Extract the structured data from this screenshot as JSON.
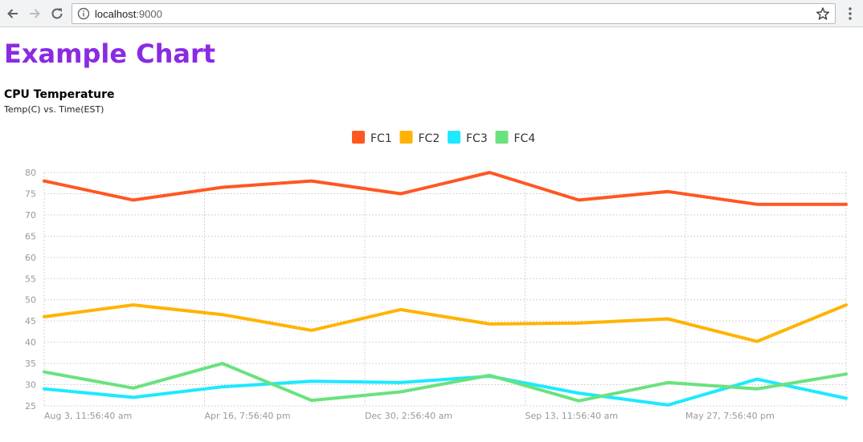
{
  "browser": {
    "url_host": "localhost",
    "url_port": ":9000"
  },
  "page": {
    "title": "Example Chart"
  },
  "chart_data": {
    "type": "line",
    "title": "CPU Temperature",
    "subtitle": "Temp(C) vs. Time(EST)",
    "x_labels": [
      "Aug 3, 11:56:40 am",
      "Apr 16, 7:56:40 pm",
      "Dec 30, 2:56:40 am",
      "Sep 13, 11:56:40 am",
      "May 27, 7:56:40 pm"
    ],
    "ylim": [
      25,
      80
    ],
    "y_ticks": [
      25,
      30,
      35,
      40,
      45,
      50,
      55,
      60,
      65,
      70,
      75,
      80
    ],
    "grid": true,
    "legend_position": "top-center",
    "series": [
      {
        "name": "FC1",
        "color": "#ff5722",
        "values": [
          78,
          73.5,
          76.5,
          78,
          75,
          80,
          73.5,
          75.5,
          72.5,
          72.5
        ]
      },
      {
        "name": "FC2",
        "color": "#ffb300",
        "values": [
          46,
          48.8,
          46.5,
          42.8,
          47.7,
          44.3,
          44.5,
          45.5,
          40.2,
          48.8
        ]
      },
      {
        "name": "FC3",
        "color": "#1de9ff",
        "values": [
          29,
          27,
          29.5,
          30.8,
          30.5,
          32,
          28,
          25.2,
          31.3,
          26.8
        ]
      },
      {
        "name": "FC4",
        "color": "#69e27e",
        "values": [
          33,
          29.2,
          35,
          26.3,
          28.3,
          32.2,
          26.2,
          30.5,
          29,
          32.5
        ]
      }
    ]
  }
}
